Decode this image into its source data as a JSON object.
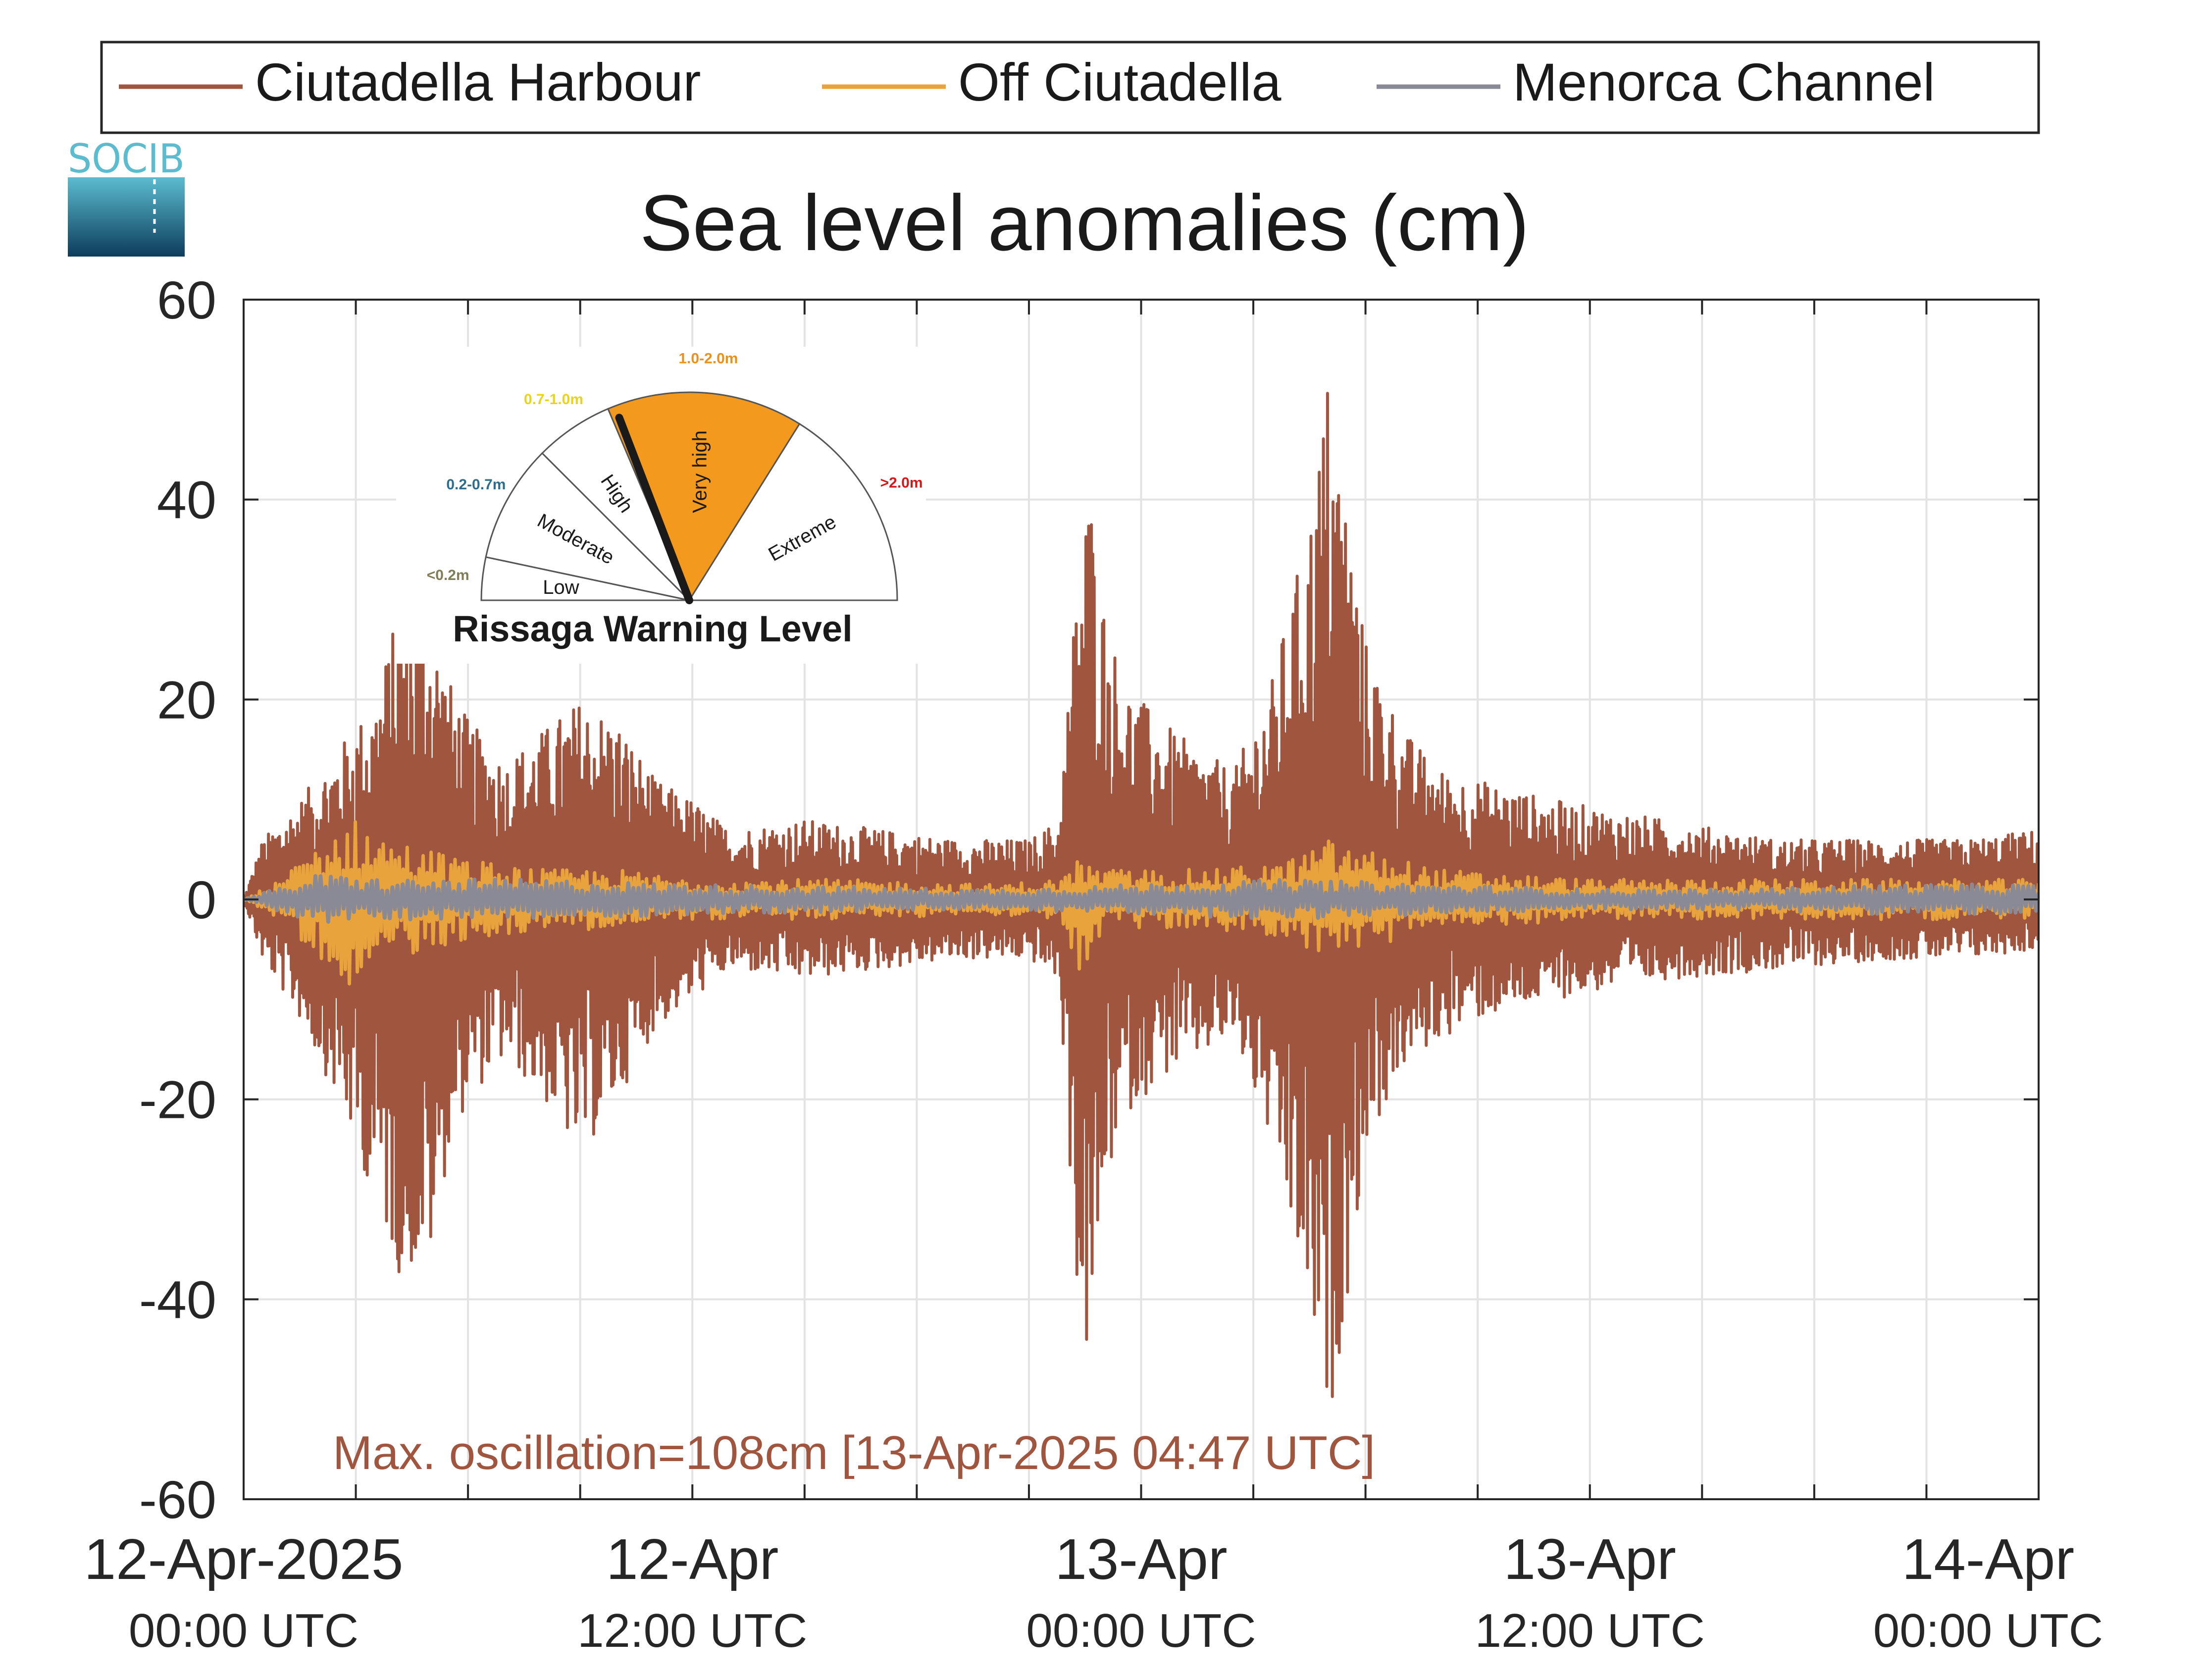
{
  "chart_data": {
    "type": "line",
    "title": "Sea level anomalies (cm)",
    "xlabel": "",
    "ylabel": "",
    "ylim": [
      -60,
      60
    ],
    "xlim_hours": [
      0,
      48
    ],
    "y_ticks": [
      "60",
      "40",
      "20",
      "0",
      "-20",
      "-40",
      "-60"
    ],
    "x_ticks": [
      {
        "hours": 0,
        "line1": "12-Apr-2025",
        "line2": "00:00 UTC"
      },
      {
        "hours": 12,
        "line1": "12-Apr",
        "line2": "12:00 UTC"
      },
      {
        "hours": 24,
        "line1": "13-Apr",
        "line2": "00:00 UTC"
      },
      {
        "hours": 36,
        "line1": "13-Apr",
        "line2": "12:00 UTC"
      },
      {
        "hours": 48,
        "line1": "14-Apr",
        "line2": "00:00 UTC"
      }
    ],
    "grid": true,
    "legend_position": "top",
    "series": [
      {
        "name": "Ciutadella Harbour",
        "color": "#a0553f",
        "envelope": {
          "hours": [
            0,
            0.5,
            1.5,
            2.5,
            3.5,
            4.2,
            5.0,
            5.5,
            6.0,
            7.0,
            8.0,
            9.0,
            10.0,
            11.0,
            12.0,
            13.0,
            15.0,
            17.0,
            19.0,
            21.0,
            21.8,
            22.3,
            22.6,
            23.0,
            23.5,
            24.5,
            25.5,
            26.5,
            27.5,
            28.5,
            29.0,
            29.5,
            30.0,
            31.0,
            32.0,
            33.0,
            35.0,
            38.0,
            41.0,
            44.0,
            46.0,
            48.0
          ],
          "upper": [
            0,
            6,
            10,
            15,
            20,
            30,
            28,
            22,
            18,
            14,
            17,
            20,
            18,
            12,
            10,
            7,
            8,
            7,
            6,
            6,
            8,
            33,
            42,
            30,
            22,
            18,
            15,
            13,
            22,
            38,
            53,
            40,
            26,
            17,
            13,
            12,
            10,
            8,
            6,
            6,
            6,
            7
          ],
          "lower": [
            0,
            -6,
            -12,
            -20,
            -30,
            -38,
            -36,
            -25,
            -20,
            -16,
            -20,
            -26,
            -20,
            -13,
            -10,
            -7,
            -8,
            -7,
            -6,
            -6,
            -8,
            -40,
            -48,
            -30,
            -22,
            -18,
            -16,
            -14,
            -25,
            -42,
            -54,
            -40,
            -25,
            -17,
            -14,
            -12,
            -10,
            -8,
            -7,
            -6,
            -6,
            -5
          ]
        }
      },
      {
        "name": "Off Ciutadella",
        "color": "#e8a33d",
        "envelope": {
          "hours": [
            0,
            1,
            2,
            3,
            4,
            5,
            6,
            8,
            10,
            12,
            16,
            20,
            21.8,
            22.3,
            23,
            24,
            26,
            28,
            29,
            30,
            32,
            36,
            40,
            44,
            48
          ],
          "upper": [
            0,
            2,
            6,
            8,
            6,
            5,
            4,
            3,
            3,
            2,
            2,
            1.5,
            2,
            4,
            3,
            3,
            3,
            4,
            6,
            5,
            3,
            2,
            2,
            2,
            2
          ],
          "lower": [
            0,
            -2,
            -6,
            -9,
            -6,
            -5,
            -4,
            -3,
            -3,
            -2,
            -2,
            -1.5,
            -2,
            -8,
            -3,
            -3,
            -3,
            -4,
            -6,
            -5,
            -3,
            -2,
            -2,
            -2,
            -2
          ]
        }
      },
      {
        "name": "Menorca Channel",
        "color": "#8a8a96",
        "envelope": {
          "hours": [
            0,
            2,
            4,
            6,
            8,
            12,
            20,
            24,
            28,
            32,
            36,
            40,
            44,
            48
          ],
          "upper": [
            0,
            2.5,
            2,
            2,
            2,
            1.5,
            1,
            1.5,
            2,
            1.5,
            1,
            1,
            1.5,
            1.5
          ],
          "lower": [
            0,
            -2.5,
            -2,
            -2,
            -2,
            -1.5,
            -1,
            -1.5,
            -2,
            -1.5,
            -1,
            -1,
            -1.5,
            -1.5
          ]
        }
      }
    ],
    "annotation": "Max. oscillation=108cm [13-Apr-2025 04:47 UTC]",
    "annotation_color": "#a0553f"
  },
  "logo": {
    "text": "SOCIB",
    "color_top": "#5bbccf",
    "color_bottom": "#0d3c5c"
  },
  "gauge": {
    "title": "Rissaga Warning Level",
    "levels": [
      {
        "name": "Low",
        "range": "<0.2m",
        "range_color": "#7e7e58",
        "from_deg": 180,
        "to_deg": 168
      },
      {
        "name": "Moderate",
        "range": "0.2-0.7m",
        "range_color": "#2e6e8c",
        "from_deg": 168,
        "to_deg": 135
      },
      {
        "name": "High",
        "range": "0.7-1.0m",
        "range_color": "#e8d51a",
        "from_deg": 135,
        "to_deg": 113
      },
      {
        "name": "Very high",
        "range": "1.0-2.0m",
        "range_color": "#e8921c",
        "from_deg": 113,
        "to_deg": 58
      },
      {
        "name": "Extreme",
        "range": ">2.0m",
        "range_color": "#d21a1a",
        "from_deg": 58,
        "to_deg": 0
      }
    ],
    "active_level": "Very high",
    "active_fill": "#f39a1e",
    "needle_deg": 111
  }
}
